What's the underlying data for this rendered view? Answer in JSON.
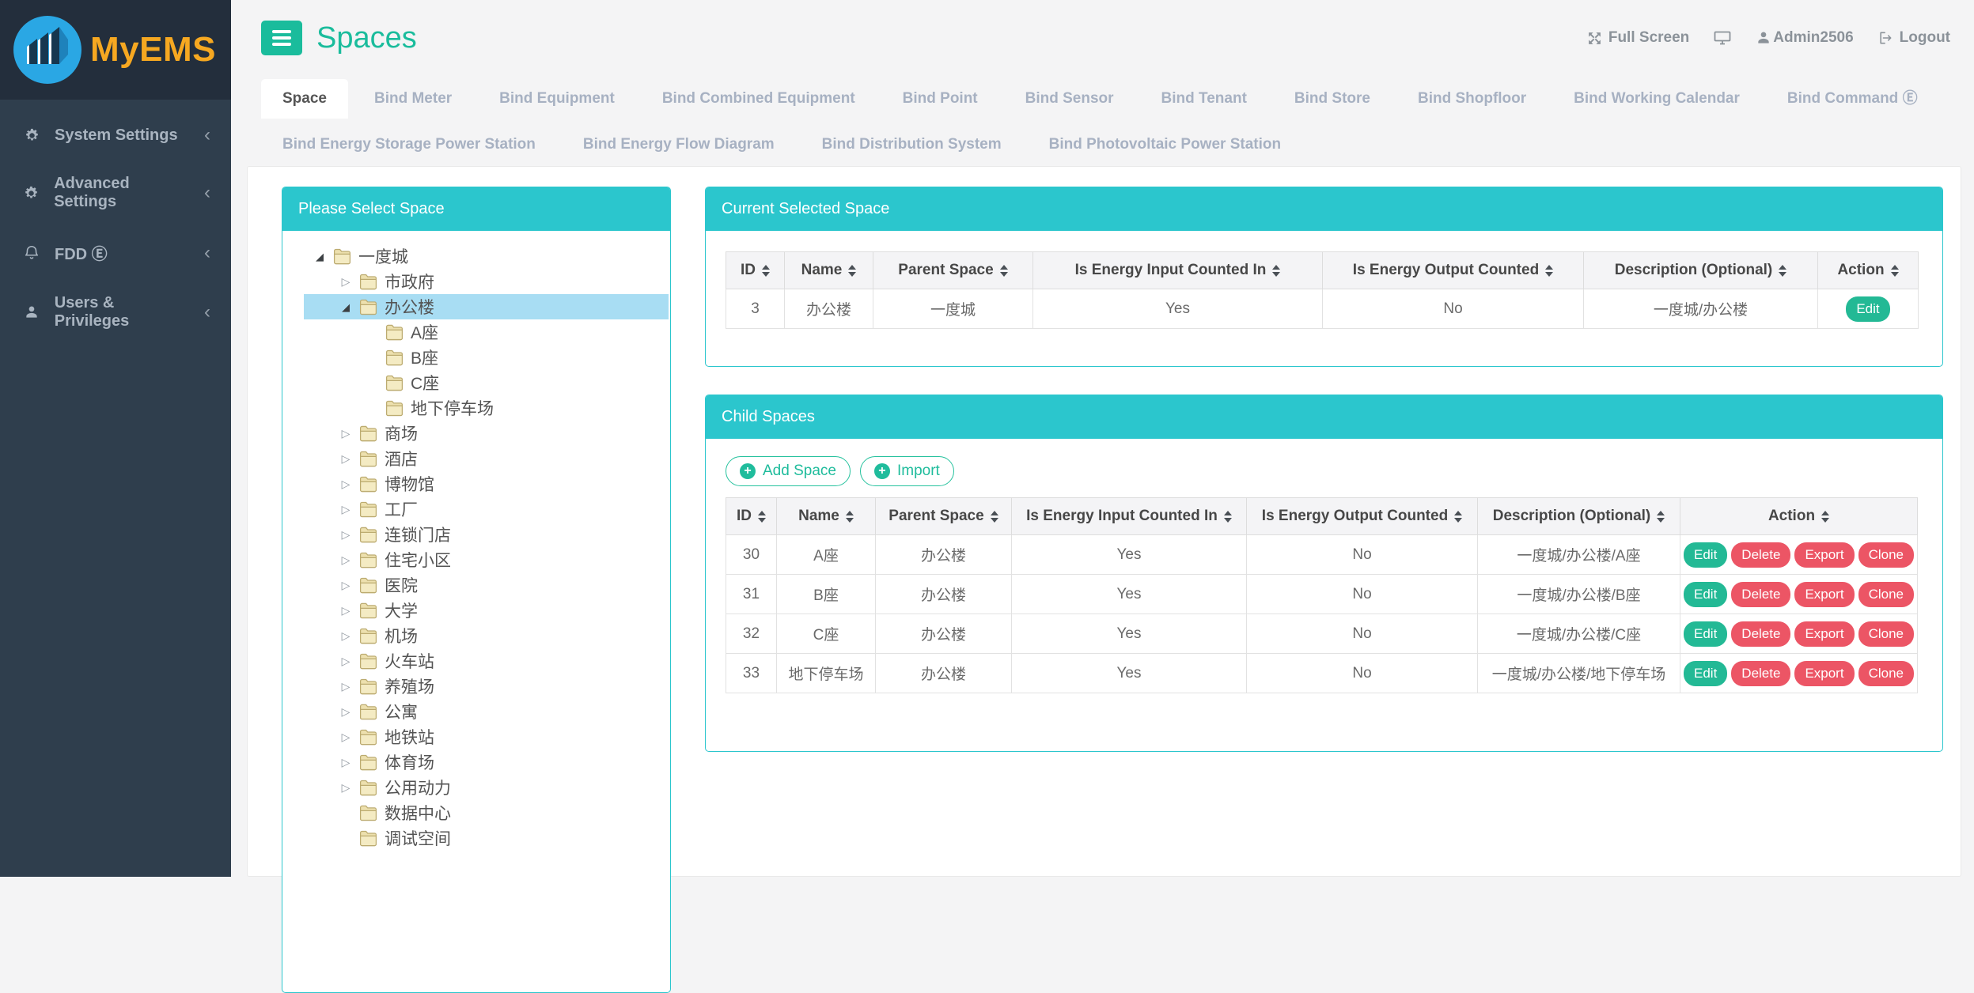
{
  "app": {
    "brand": "MyEMS",
    "page_title": "Spaces"
  },
  "header": {
    "full_screen_label": "Full Screen",
    "username": "Admin2506",
    "logout_label": "Logout"
  },
  "sidebar": {
    "items": [
      {
        "label": "System Settings",
        "icon": "gears"
      },
      {
        "label": "Advanced Settings",
        "icon": "gears"
      },
      {
        "label": "FDD Ⓔ",
        "icon": "bell"
      },
      {
        "label": "Users & Privileges",
        "icon": "user"
      }
    ]
  },
  "tabs": {
    "active": "Space",
    "row1": [
      "Space",
      "Bind Meter",
      "Bind Equipment",
      "Bind Combined Equipment",
      "Bind Point",
      "Bind Sensor",
      "Bind Tenant",
      "Bind Store",
      "Bind Shopfloor",
      "Bind Working Calendar",
      "Bind Command Ⓔ"
    ],
    "row2": [
      "Bind Energy Storage Power Station",
      "Bind Energy Flow Diagram",
      "Bind Distribution System",
      "Bind Photovoltaic Power Station"
    ]
  },
  "tree_panel": {
    "title": "Please Select Space",
    "nodes": [
      {
        "label": "一度城",
        "level": 0,
        "state": "expanded",
        "selected": false
      },
      {
        "label": "市政府",
        "level": 1,
        "state": "collapsed",
        "selected": false
      },
      {
        "label": "办公楼",
        "level": 1,
        "state": "expanded",
        "selected": true
      },
      {
        "label": "A座",
        "level": 2,
        "state": "leaf",
        "selected": false
      },
      {
        "label": "B座",
        "level": 2,
        "state": "leaf",
        "selected": false
      },
      {
        "label": "C座",
        "level": 2,
        "state": "leaf",
        "selected": false
      },
      {
        "label": "地下停车场",
        "level": 2,
        "state": "leaf",
        "selected": false
      },
      {
        "label": "商场",
        "level": 1,
        "state": "collapsed",
        "selected": false
      },
      {
        "label": "酒店",
        "level": 1,
        "state": "collapsed",
        "selected": false
      },
      {
        "label": "博物馆",
        "level": 1,
        "state": "collapsed",
        "selected": false
      },
      {
        "label": "工厂",
        "level": 1,
        "state": "collapsed",
        "selected": false
      },
      {
        "label": "连锁门店",
        "level": 1,
        "state": "collapsed",
        "selected": false
      },
      {
        "label": "住宅小区",
        "level": 1,
        "state": "collapsed",
        "selected": false
      },
      {
        "label": "医院",
        "level": 1,
        "state": "collapsed",
        "selected": false
      },
      {
        "label": "大学",
        "level": 1,
        "state": "collapsed",
        "selected": false
      },
      {
        "label": "机场",
        "level": 1,
        "state": "collapsed",
        "selected": false
      },
      {
        "label": "火车站",
        "level": 1,
        "state": "collapsed",
        "selected": false
      },
      {
        "label": "养殖场",
        "level": 1,
        "state": "collapsed",
        "selected": false
      },
      {
        "label": "公寓",
        "level": 1,
        "state": "collapsed",
        "selected": false
      },
      {
        "label": "地铁站",
        "level": 1,
        "state": "collapsed",
        "selected": false
      },
      {
        "label": "体育场",
        "level": 1,
        "state": "collapsed",
        "selected": false
      },
      {
        "label": "公用动力",
        "level": 1,
        "state": "collapsed",
        "selected": false
      },
      {
        "label": "数据中心",
        "level": 1,
        "state": "leaf",
        "selected": false
      },
      {
        "label": "调试空间",
        "level": 1,
        "state": "leaf",
        "selected": false
      }
    ]
  },
  "selected_panel": {
    "title": "Current Selected Space",
    "columns": [
      "ID",
      "Name",
      "Parent Space",
      "Is Energy Input Counted In",
      "Is Energy Output Counted",
      "Description (Optional)",
      "Action"
    ],
    "rows": [
      [
        "3",
        "办公楼",
        "一度城",
        "Yes",
        "No",
        "一度城/办公楼"
      ]
    ],
    "row_actions": [
      {
        "label": "Edit",
        "color": "green"
      }
    ]
  },
  "child_panel": {
    "title": "Child Spaces",
    "toolbar_buttons": [
      "Add Space",
      "Import"
    ],
    "columns": [
      "ID",
      "Name",
      "Parent Space",
      "Is Energy Input Counted In",
      "Is Energy Output Counted",
      "Description (Optional)",
      "Action"
    ],
    "rows": [
      [
        "30",
        "A座",
        "办公楼",
        "Yes",
        "No",
        "一度城/办公楼/A座"
      ],
      [
        "31",
        "B座",
        "办公楼",
        "Yes",
        "No",
        "一度城/办公楼/B座"
      ],
      [
        "32",
        "C座",
        "办公楼",
        "Yes",
        "No",
        "一度城/办公楼/C座"
      ],
      [
        "33",
        "地下停车场",
        "办公楼",
        "Yes",
        "No",
        "一度城/办公楼/地下停车场"
      ]
    ],
    "row_actions": [
      {
        "label": "Edit",
        "color": "green"
      },
      {
        "label": "Delete",
        "color": "red"
      },
      {
        "label": "Export",
        "color": "red"
      },
      {
        "label": "Clone",
        "color": "red"
      }
    ]
  },
  "colors": {
    "accent_teal": "#2bc6cd",
    "accent_green": "#1abc9c",
    "danger_red": "#ec5565",
    "sidebar_bg": "#2f3e4d",
    "brand_orange": "#f6a821",
    "tree_selected_bg": "#a8ddf3"
  }
}
